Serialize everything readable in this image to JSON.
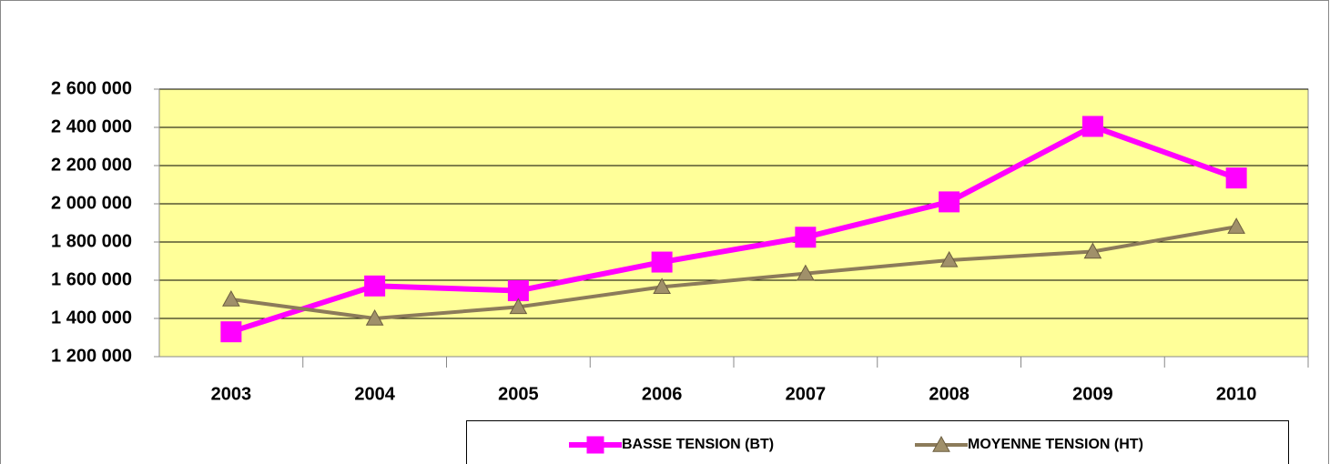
{
  "chart_data": {
    "type": "line",
    "categories": [
      "2003",
      "2004",
      "2005",
      "2006",
      "2007",
      "2008",
      "2009",
      "2010"
    ],
    "series": [
      {
        "name": "BASSE TENSION (BT)",
        "color": "#ff00ff",
        "marker": "square",
        "values": [
          1330000,
          1570000,
          1545000,
          1695000,
          1825000,
          2010000,
          2405000,
          2135000
        ]
      },
      {
        "name": "MOYENNE TENSION (HT)",
        "color": "#8c7b5a",
        "marker": "triangle",
        "values": [
          1500000,
          1400000,
          1460000,
          1565000,
          1635000,
          1705000,
          1750000,
          1880000
        ]
      }
    ],
    "ylim": [
      1200000,
      2600000
    ],
    "yticks": [
      {
        "value": 1200000,
        "label": "1 200 000"
      },
      {
        "value": 1400000,
        "label": "1 400 000"
      },
      {
        "value": 1600000,
        "label": "1 600 000"
      },
      {
        "value": 1800000,
        "label": "1 800 000"
      },
      {
        "value": 2000000,
        "label": "2 000 000"
      },
      {
        "value": 2200000,
        "label": "2 200 000"
      },
      {
        "value": 2400000,
        "label": "2 400 000"
      },
      {
        "value": 2600000,
        "label": "2 600 000"
      }
    ],
    "grid": true,
    "legend": "bottom",
    "plot_background": "#ffff99"
  }
}
